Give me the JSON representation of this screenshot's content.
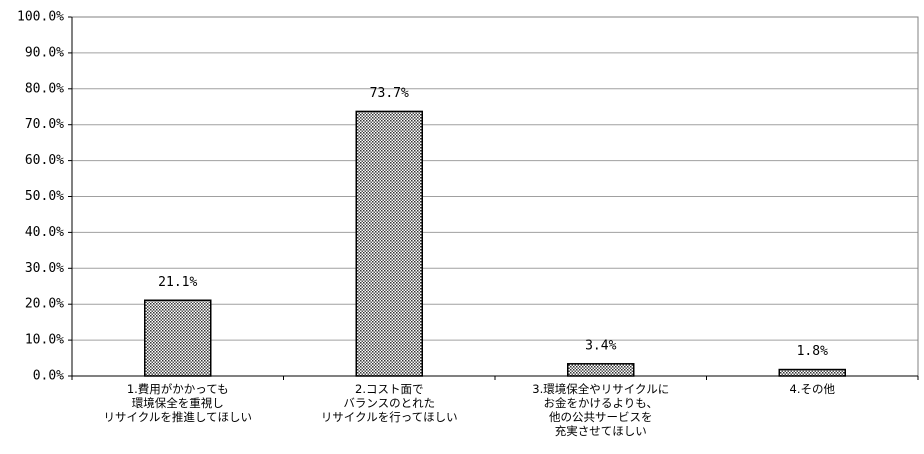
{
  "chart_data": {
    "type": "bar",
    "categories": [
      "1.費用がかかっても\n環境保全を重視し\nリサイクルを推進してほしい",
      "2.コスト面で\nバランスのとれた\nリサイクルを行ってほしい",
      "3.環境保全やリサイクルに\nお金をかけるよりも、\n他の公共サービスを\n充実させてほしい",
      "4.その他"
    ],
    "values": [
      21.1,
      73.7,
      3.4,
      1.8
    ],
    "value_labels": [
      "21.1%",
      "73.7%",
      "3.4%",
      "1.8%"
    ],
    "color": "#9a9a9a",
    "ylim": [
      0,
      100
    ],
    "yticks": [
      {
        "value": 0,
        "label": "0.0%"
      },
      {
        "value": 10,
        "label": "10.0%"
      },
      {
        "value": 20,
        "label": "20.0%"
      },
      {
        "value": 30,
        "label": "30.0%"
      },
      {
        "value": 40,
        "label": "40.0%"
      },
      {
        "value": 50,
        "label": "50.0%"
      },
      {
        "value": 60,
        "label": "60.0%"
      },
      {
        "value": 70,
        "label": "70.0%"
      },
      {
        "value": 80,
        "label": "80.0%"
      },
      {
        "value": 90,
        "label": "90.0%"
      },
      {
        "value": 100,
        "label": "100.0%"
      }
    ],
    "grid": true
  }
}
